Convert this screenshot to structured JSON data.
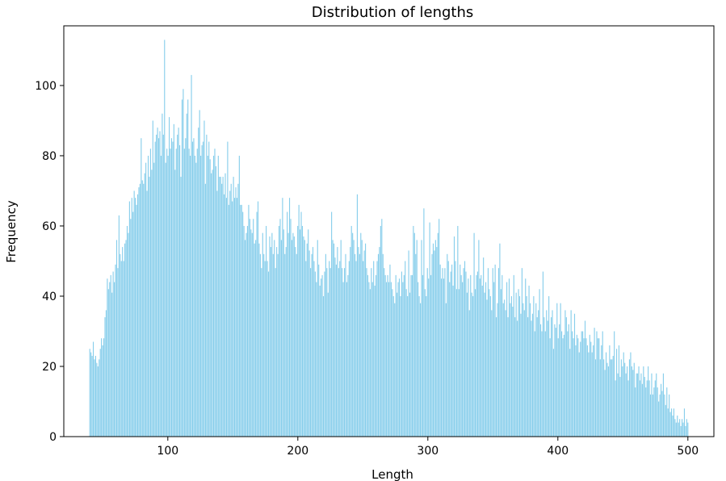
{
  "chart_data": {
    "type": "bar",
    "title": "Distribution of lengths",
    "xlabel": "Length",
    "ylabel": "Frequency",
    "xlim": [
      20,
      520
    ],
    "ylim": [
      0,
      117
    ],
    "x_ticks": [
      100,
      200,
      300,
      400,
      500
    ],
    "y_ticks": [
      0,
      20,
      40,
      60,
      80,
      100
    ],
    "color": "#87ceeb",
    "grid": false,
    "legend": "none",
    "x_start": 40,
    "x_end": 500,
    "values": [
      25,
      24,
      23,
      27,
      22,
      23,
      21,
      20,
      22,
      25,
      28,
      26,
      28,
      34,
      36,
      45,
      42,
      44,
      46,
      41,
      47,
      44,
      49,
      56,
      48,
      63,
      52,
      50,
      54,
      50,
      55,
      56,
      60,
      58,
      67,
      62,
      68,
      64,
      70,
      68,
      66,
      69,
      71,
      72,
      85,
      73,
      72,
      75,
      78,
      70,
      80,
      74,
      82,
      76,
      90,
      78,
      84,
      86,
      88,
      85,
      87,
      80,
      92,
      86,
      113,
      78,
      82,
      80,
      91,
      82,
      85,
      84,
      89,
      76,
      82,
      86,
      88,
      83,
      74,
      96,
      99,
      82,
      85,
      92,
      96,
      82,
      80,
      103,
      84,
      85,
      80,
      78,
      82,
      88,
      93,
      80,
      83,
      84,
      90,
      72,
      86,
      80,
      84,
      79,
      75,
      76,
      80,
      82,
      77,
      70,
      80,
      74,
      74,
      72,
      74,
      69,
      75,
      68,
      84,
      66,
      70,
      72,
      67,
      74,
      68,
      71,
      68,
      72,
      80,
      66,
      66,
      64,
      60,
      56,
      58,
      60,
      66,
      62,
      59,
      58,
      62,
      55,
      56,
      64,
      67,
      55,
      52,
      48,
      58,
      52,
      50,
      60,
      50,
      47,
      57,
      54,
      58,
      52,
      56,
      48,
      54,
      52,
      60,
      62,
      56,
      68,
      59,
      52,
      54,
      64,
      58,
      68,
      62,
      56,
      58,
      57,
      54,
      52,
      60,
      66,
      59,
      64,
      60,
      57,
      56,
      50,
      55,
      59,
      53,
      48,
      52,
      54,
      50,
      47,
      44,
      56,
      49,
      43,
      45,
      46,
      40,
      47,
      52,
      48,
      41,
      50,
      48,
      64,
      56,
      55,
      51,
      49,
      54,
      48,
      50,
      56,
      48,
      44,
      48,
      52,
      44,
      46,
      50,
      54,
      60,
      58,
      56,
      52,
      50,
      69,
      54,
      52,
      58,
      56,
      50,
      53,
      55,
      48,
      46,
      44,
      42,
      48,
      44,
      50,
      43,
      46,
      50,
      52,
      54,
      60,
      62,
      52,
      48,
      46,
      44,
      46,
      44,
      49,
      44,
      42,
      40,
      38,
      46,
      41,
      44,
      45,
      40,
      47,
      44,
      46,
      50,
      42,
      40,
      53,
      41,
      46,
      46,
      60,
      58,
      52,
      56,
      44,
      40,
      38,
      56,
      46,
      65,
      42,
      40,
      48,
      45,
      61,
      46,
      52,
      55,
      53,
      56,
      54,
      58,
      62,
      49,
      45,
      48,
      45,
      48,
      38,
      52,
      50,
      44,
      47,
      49,
      43,
      57,
      50,
      42,
      60,
      42,
      49,
      46,
      44,
      48,
      50,
      47,
      41,
      45,
      36,
      46,
      41,
      40,
      58,
      42,
      46,
      47,
      56,
      45,
      46,
      43,
      51,
      41,
      44,
      39,
      48,
      42,
      40,
      36,
      48,
      44,
      49,
      34,
      38,
      48,
      55,
      42,
      46,
      38,
      39,
      36,
      44,
      34,
      45,
      38,
      40,
      37,
      46,
      34,
      41,
      33,
      42,
      40,
      35,
      48,
      38,
      36,
      45,
      40,
      34,
      43,
      38,
      33,
      35,
      40,
      30,
      38,
      34,
      36,
      42,
      32,
      30,
      47,
      34,
      30,
      36,
      33,
      40,
      28,
      34,
      36,
      25,
      32,
      31,
      38,
      28,
      32,
      38,
      30,
      28,
      29,
      36,
      34,
      30,
      32,
      25,
      36,
      30,
      28,
      35,
      26,
      29,
      28,
      24,
      27,
      30,
      30,
      28,
      33,
      28,
      26,
      24,
      29,
      27,
      24,
      26,
      31,
      22,
      30,
      28,
      28,
      22,
      26,
      30,
      22,
      19,
      24,
      21,
      20,
      26,
      22,
      22,
      23,
      30,
      16,
      25,
      18,
      26,
      17,
      22,
      20,
      24,
      21,
      18,
      20,
      16,
      22,
      24,
      20,
      19,
      21,
      14,
      18,
      18,
      20,
      16,
      18,
      15,
      20,
      17,
      14,
      16,
      20,
      16,
      12,
      18,
      12,
      14,
      16,
      18,
      14,
      10,
      12,
      15,
      13,
      18,
      12,
      9,
      14,
      8,
      12,
      7,
      8,
      6,
      8,
      5,
      4,
      6,
      4,
      5,
      3,
      5,
      4,
      8,
      3,
      5,
      4
    ]
  }
}
